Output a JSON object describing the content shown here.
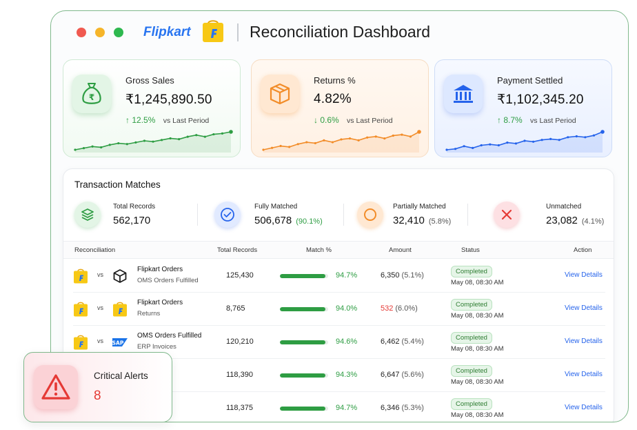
{
  "app": {
    "brand": "Flipkart",
    "title": "Reconciliation Dashboard"
  },
  "kpis": [
    {
      "label": "Gross Sales",
      "value": "₹1,245,890.50",
      "delta": "12.5%",
      "delta_dir": "up",
      "vs": "vs Last Period",
      "icon": "money-bag-icon",
      "accent": "#2e9d43"
    },
    {
      "label": "Returns %",
      "value": "4.82%",
      "delta": "0.6%",
      "delta_dir": "down",
      "vs": "vs Last Period",
      "icon": "box-icon",
      "accent": "#f28c28"
    },
    {
      "label": "Payment Settled",
      "value": "₹1,102,345.20",
      "delta": "8.7%",
      "delta_dir": "up",
      "vs": "vs Last Period",
      "icon": "bank-icon",
      "accent": "#2563eb"
    }
  ],
  "matches": {
    "title": "Transaction Matches",
    "stats": [
      {
        "label": "Total Records",
        "value": "562,170",
        "pct": ""
      },
      {
        "label": "Fully Matched",
        "value": "506,678",
        "pct": "(90.1%)"
      },
      {
        "label": "Partially Matched",
        "value": "32,410",
        "pct": "(5.8%)"
      },
      {
        "label": "Unmatched",
        "value": "23,082",
        "pct": "(4.1%)"
      }
    ]
  },
  "table": {
    "headers": {
      "reconciliation": "Reconciliation",
      "total": "Total Records",
      "match": "Match %",
      "amount": "Amount",
      "status": "Status",
      "action": "Action"
    },
    "vs": "vs",
    "rows": [
      {
        "source": "Flipkart Orders",
        "target": "OMS Orders Fulfilled",
        "total": "125,430",
        "match": "94.7%",
        "match_value": 94.7,
        "amount": "6,350",
        "amount_pct": "(5.1%)",
        "status": "Completed",
        "date": "May 08, 08:30 AM",
        "action": "View Details",
        "logo_b": "oms"
      },
      {
        "source": "Flipkart Orders",
        "target": "Returns",
        "total": "8,765",
        "match": "94.0%",
        "match_value": 94.0,
        "amount": "532",
        "amount_pct": "(6.0%)",
        "status": "Completed",
        "date": "May 08, 08:30 AM",
        "action": "View Details",
        "logo_b": "flipkart"
      },
      {
        "source": "OMS Orders Fulfilled",
        "target": "ERP Invoices",
        "total": "120,210",
        "match": "94.6%",
        "match_value": 94.6,
        "amount": "6,462",
        "amount_pct": "(5.4%)",
        "status": "Completed",
        "date": "May 08, 08:30 AM",
        "action": "View Details",
        "logo_b": "sap"
      },
      {
        "source": "rders",
        "target": "ements",
        "total": "118,390",
        "match": "94.3%",
        "match_value": 94.3,
        "amount": "6,647",
        "amount_pct": "(5.6%)",
        "status": "Completed",
        "date": "May 08, 08:30 AM",
        "action": "View Details",
        "logo_b": "none"
      },
      {
        "source": "ements",
        "target": "ent",
        "total": "118,375",
        "match": "94.7%",
        "match_value": 94.7,
        "amount": "6,346",
        "amount_pct": "(5.3%)",
        "status": "Completed",
        "date": "May 08, 08:30 AM",
        "action": "View Details",
        "logo_b": "none"
      }
    ]
  },
  "alert": {
    "title": "Critical Alerts",
    "value": "8"
  },
  "sparklines": {
    "gross_sales": [
      3,
      4,
      5,
      4.5,
      6,
      7,
      6.5,
      7.5,
      8.5,
      8,
      9,
      10,
      9.5,
      11,
      12,
      11,
      12.5,
      13,
      14
    ],
    "returns": [
      2,
      3,
      4,
      3.5,
      5,
      6,
      5.5,
      7,
      6,
      7.5,
      8,
      7,
      8.5,
      9,
      8,
      9.5,
      10,
      9,
      11.5
    ],
    "payment_settled": [
      3,
      3.5,
      5,
      4,
      5.5,
      6,
      5.5,
      7,
      6.5,
      8,
      7.5,
      8.5,
      9,
      8.5,
      10,
      10.5,
      10,
      11,
      13
    ]
  }
}
